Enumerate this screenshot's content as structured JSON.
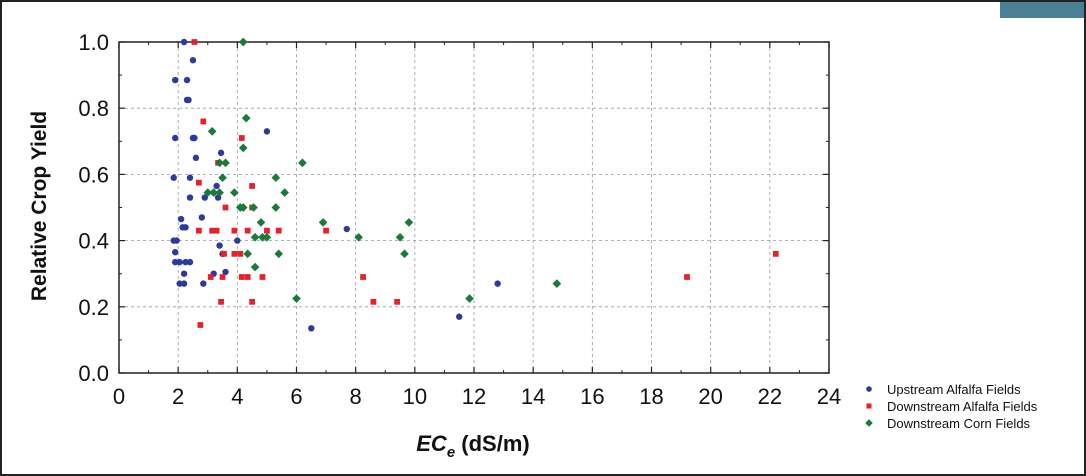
{
  "chart_data": {
    "type": "scatter",
    "ylabel": "Relative Crop Yield",
    "xlabel_main": "EC",
    "xlabel_sub": "e",
    "xlabel_unit": "(dS/m)",
    "xlim": [
      0,
      24
    ],
    "ylim": [
      0.0,
      1.0
    ],
    "xticks": [
      0,
      2,
      4,
      6,
      8,
      10,
      12,
      14,
      16,
      18,
      20,
      22,
      24
    ],
    "xtick_labels": [
      "0",
      "2",
      "4",
      "6",
      "8",
      "10",
      "12",
      "14",
      "16",
      "18",
      "20",
      "22",
      "24"
    ],
    "yticks": [
      0.0,
      0.2,
      0.4,
      0.6,
      0.8,
      1.0
    ],
    "ytick_labels": [
      "0.0",
      "0.2",
      "0.4",
      "0.6",
      "0.8",
      "1.0"
    ],
    "grid": true,
    "legend_position": "bottom-right-outside",
    "series": [
      {
        "name": "Upstream Alfalfa Fields",
        "marker": "circle",
        "color": "#2b3a9c",
        "points": [
          [
            2.2,
            1.0
          ],
          [
            1.9,
            0.885
          ],
          [
            2.3,
            0.885
          ],
          [
            2.5,
            0.945
          ],
          [
            2.3,
            0.825
          ],
          [
            2.35,
            0.825
          ],
          [
            1.9,
            0.71
          ],
          [
            2.5,
            0.71
          ],
          [
            2.55,
            0.71
          ],
          [
            3.45,
            0.665
          ],
          [
            2.6,
            0.65
          ],
          [
            1.85,
            0.59
          ],
          [
            2.4,
            0.59
          ],
          [
            3.3,
            0.565
          ],
          [
            2.4,
            0.53
          ],
          [
            2.9,
            0.53
          ],
          [
            3.35,
            0.53
          ],
          [
            5.0,
            0.73
          ],
          [
            2.8,
            0.47
          ],
          [
            2.1,
            0.465
          ],
          [
            2.25,
            0.44
          ],
          [
            2.15,
            0.44
          ],
          [
            1.85,
            0.4
          ],
          [
            1.95,
            0.4
          ],
          [
            4.0,
            0.4
          ],
          [
            3.4,
            0.385
          ],
          [
            1.9,
            0.365
          ],
          [
            3.5,
            0.36
          ],
          [
            7.7,
            0.435
          ],
          [
            1.9,
            0.335
          ],
          [
            2.05,
            0.335
          ],
          [
            2.25,
            0.335
          ],
          [
            2.4,
            0.335
          ],
          [
            2.2,
            0.3
          ],
          [
            3.2,
            0.3
          ],
          [
            3.6,
            0.305
          ],
          [
            2.05,
            0.27
          ],
          [
            2.2,
            0.27
          ],
          [
            2.85,
            0.27
          ],
          [
            6.5,
            0.135
          ],
          [
            11.5,
            0.17
          ],
          [
            12.8,
            0.27
          ]
        ]
      },
      {
        "name": "Downstream Alfalfa Fields",
        "marker": "square",
        "color": "#e8202a",
        "points": [
          [
            2.55,
            1.0
          ],
          [
            2.85,
            0.76
          ],
          [
            4.15,
            0.71
          ],
          [
            3.35,
            0.635
          ],
          [
            2.7,
            0.575
          ],
          [
            4.5,
            0.565
          ],
          [
            3.6,
            0.5
          ],
          [
            4.5,
            0.5
          ],
          [
            2.7,
            0.43
          ],
          [
            3.15,
            0.43
          ],
          [
            3.3,
            0.43
          ],
          [
            3.9,
            0.43
          ],
          [
            4.35,
            0.43
          ],
          [
            5.0,
            0.43
          ],
          [
            5.4,
            0.43
          ],
          [
            7.0,
            0.43
          ],
          [
            3.55,
            0.36
          ],
          [
            3.9,
            0.36
          ],
          [
            4.1,
            0.36
          ],
          [
            3.1,
            0.29
          ],
          [
            3.5,
            0.29
          ],
          [
            4.15,
            0.29
          ],
          [
            4.35,
            0.29
          ],
          [
            4.85,
            0.29
          ],
          [
            8.25,
            0.29
          ],
          [
            3.45,
            0.215
          ],
          [
            4.5,
            0.215
          ],
          [
            8.6,
            0.215
          ],
          [
            9.4,
            0.215
          ],
          [
            2.75,
            0.145
          ],
          [
            19.2,
            0.29
          ],
          [
            22.2,
            0.36
          ]
        ]
      },
      {
        "name": "Downstream Corn Fields",
        "marker": "diamond",
        "color": "#1a7a3a",
        "points": [
          [
            4.2,
            1.0
          ],
          [
            4.3,
            0.77
          ],
          [
            3.15,
            0.73
          ],
          [
            4.2,
            0.68
          ],
          [
            3.4,
            0.635
          ],
          [
            3.6,
            0.635
          ],
          [
            6.2,
            0.635
          ],
          [
            3.5,
            0.59
          ],
          [
            5.3,
            0.59
          ],
          [
            3.0,
            0.545
          ],
          [
            3.2,
            0.545
          ],
          [
            3.4,
            0.545
          ],
          [
            3.9,
            0.545
          ],
          [
            5.6,
            0.545
          ],
          [
            4.1,
            0.5
          ],
          [
            4.2,
            0.5
          ],
          [
            4.55,
            0.5
          ],
          [
            5.3,
            0.5
          ],
          [
            4.8,
            0.455
          ],
          [
            6.9,
            0.455
          ],
          [
            9.8,
            0.455
          ],
          [
            4.6,
            0.41
          ],
          [
            4.85,
            0.41
          ],
          [
            5.0,
            0.41
          ],
          [
            8.1,
            0.41
          ],
          [
            9.5,
            0.41
          ],
          [
            4.35,
            0.36
          ],
          [
            5.4,
            0.36
          ],
          [
            9.65,
            0.36
          ],
          [
            4.6,
            0.32
          ],
          [
            14.8,
            0.27
          ],
          [
            6.0,
            0.225
          ],
          [
            11.85,
            0.225
          ]
        ]
      }
    ]
  }
}
